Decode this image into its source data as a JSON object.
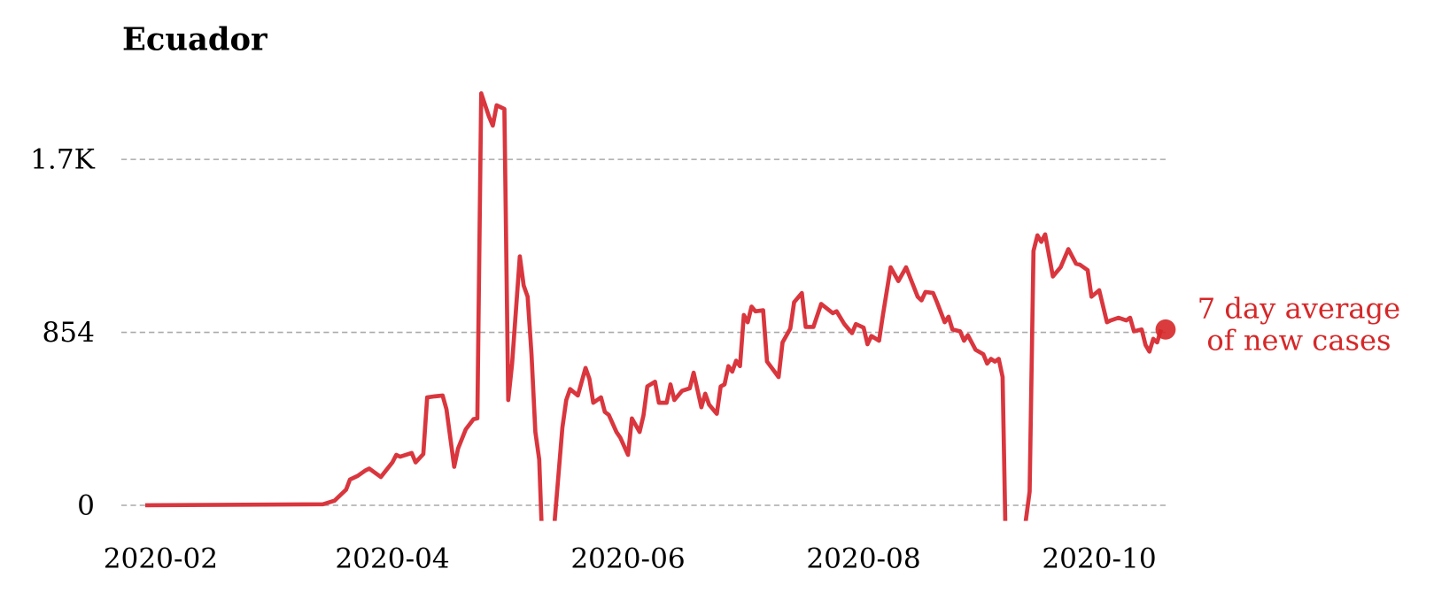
{
  "chart_data": {
    "type": "line",
    "title": "Ecuador",
    "annotation_lines": [
      "7 day average",
      "of new cases"
    ],
    "color": "#d9363e",
    "x": [
      "2020-01-28",
      "2020-03-14",
      "2020-03-17",
      "2020-03-20",
      "2020-03-21",
      "2020-03-23",
      "2020-03-25",
      "2020-03-26",
      "2020-03-29",
      "2020-04-01",
      "2020-04-02",
      "2020-04-03",
      "2020-04-06",
      "2020-04-07",
      "2020-04-09",
      "2020-04-10",
      "2020-04-12",
      "2020-04-14",
      "2020-04-15",
      "2020-04-17",
      "2020-04-18",
      "2020-04-20",
      "2020-04-22",
      "2020-04-23",
      "2020-04-24",
      "2020-04-26",
      "2020-04-27",
      "2020-04-28",
      "2020-04-30",
      "2020-05-01",
      "2020-05-02",
      "2020-05-04",
      "2020-05-05",
      "2020-05-06",
      "2020-05-07",
      "2020-05-08",
      "2020-05-09",
      "2020-05-10",
      "2020-05-11",
      "2020-05-13",
      "2020-05-15",
      "2020-05-16",
      "2020-05-17",
      "2020-05-19",
      "2020-05-21",
      "2020-05-22",
      "2020-05-23",
      "2020-05-25",
      "2020-05-26",
      "2020-05-27",
      "2020-05-29",
      "2020-05-30",
      "2020-06-01",
      "2020-06-02",
      "2020-06-04",
      "2020-06-05",
      "2020-06-06",
      "2020-06-08",
      "2020-06-09",
      "2020-06-11",
      "2020-06-12",
      "2020-06-13",
      "2020-06-15",
      "2020-06-17",
      "2020-06-18",
      "2020-06-20",
      "2020-06-21",
      "2020-06-22",
      "2020-06-24",
      "2020-06-25",
      "2020-06-26",
      "2020-06-27",
      "2020-06-28",
      "2020-06-29",
      "2020-06-30",
      "2020-07-01",
      "2020-07-02",
      "2020-07-03",
      "2020-07-04",
      "2020-07-06",
      "2020-07-07",
      "2020-07-10",
      "2020-07-11",
      "2020-07-13",
      "2020-07-14",
      "2020-07-16",
      "2020-07-17",
      "2020-07-19",
      "2020-07-21",
      "2020-07-24",
      "2020-07-25",
      "2020-07-27",
      "2020-07-29",
      "2020-07-30",
      "2020-08-01",
      "2020-08-02",
      "2020-08-03",
      "2020-08-05",
      "2020-08-06",
      "2020-08-08",
      "2020-08-10",
      "2020-08-12",
      "2020-08-15",
      "2020-08-16",
      "2020-08-17",
      "2020-08-19",
      "2020-08-20",
      "2020-08-22",
      "2020-08-23",
      "2020-08-24",
      "2020-08-26",
      "2020-08-27",
      "2020-08-28",
      "2020-08-30",
      "2020-09-01",
      "2020-09-02",
      "2020-09-03",
      "2020-09-04",
      "2020-09-05",
      "2020-09-06",
      "2020-09-07",
      "2020-09-09",
      "2020-09-12",
      "2020-09-13",
      "2020-09-14",
      "2020-09-15",
      "2020-09-16",
      "2020-09-17",
      "2020-09-19",
      "2020-09-21",
      "2020-09-23",
      "2020-09-25",
      "2020-09-26",
      "2020-09-28",
      "2020-09-29",
      "2020-10-01",
      "2020-10-03",
      "2020-10-04",
      "2020-10-06",
      "2020-10-08",
      "2020-10-09",
      "2020-10-10",
      "2020-10-12",
      "2020-10-13",
      "2020-10-14",
      "2020-10-15",
      "2020-10-16",
      "2020-10-17"
    ],
    "values": [
      0,
      5,
      23,
      77,
      127,
      145,
      172,
      181,
      140,
      212,
      249,
      240,
      258,
      212,
      253,
      533,
      538,
      542,
      474,
      190,
      280,
      375,
      425,
      429,
      2034,
      1920,
      1875,
      1975,
      1957,
      520,
      700,
      1229,
      1085,
      1030,
      746,
      362,
      226,
      -300,
      -300,
      -77,
      384,
      520,
      574,
      542,
      678,
      624,
      506,
      533,
      461,
      447,
      362,
      334,
      249,
      429,
      362,
      443,
      587,
      610,
      506,
      506,
      597,
      520,
      565,
      578,
      655,
      484,
      551,
      497,
      452,
      587,
      597,
      687,
      660,
      714,
      687,
      940,
      904,
      981,
      958,
      963,
      710,
      633,
      804,
      872,
      1003,
      1048,
      881,
      881,
      994,
      949,
      958,
      895,
      850,
      895,
      877,
      795,
      836,
      813,
      940,
      1175,
      1107,
      1175,
      1030,
      1012,
      1053,
      1048,
      1003,
      904,
      931,
      868,
      859,
      813,
      840,
      768,
      746,
      700,
      723,
      710,
      723,
      633,
      -400,
      -300,
      -77,
      68,
      1256,
      1333,
      1301,
      1338,
      1130,
      1175,
      1265,
      1193,
      1188,
      1161,
      1030,
      1062,
      904,
      913,
      926,
      913,
      926,
      859,
      868,
      791,
      759,
      822,
      804,
      868
    ],
    "xlim": [
      "2020-01-28",
      "2020-10-17"
    ],
    "xticks": [
      {
        "value": "2020-02-01",
        "label": "2020-02"
      },
      {
        "value": "2020-04-01",
        "label": "2020-04"
      },
      {
        "value": "2020-06-01",
        "label": "2020-06"
      },
      {
        "value": "2020-08-01",
        "label": "2020-08"
      },
      {
        "value": "2020-10-01",
        "label": "2020-10"
      }
    ],
    "ylim": [
      -77,
      2050
    ],
    "yticks": [
      0,
      854,
      {
        "value": 1708,
        "label": "1.7K"
      }
    ],
    "grid": true
  }
}
